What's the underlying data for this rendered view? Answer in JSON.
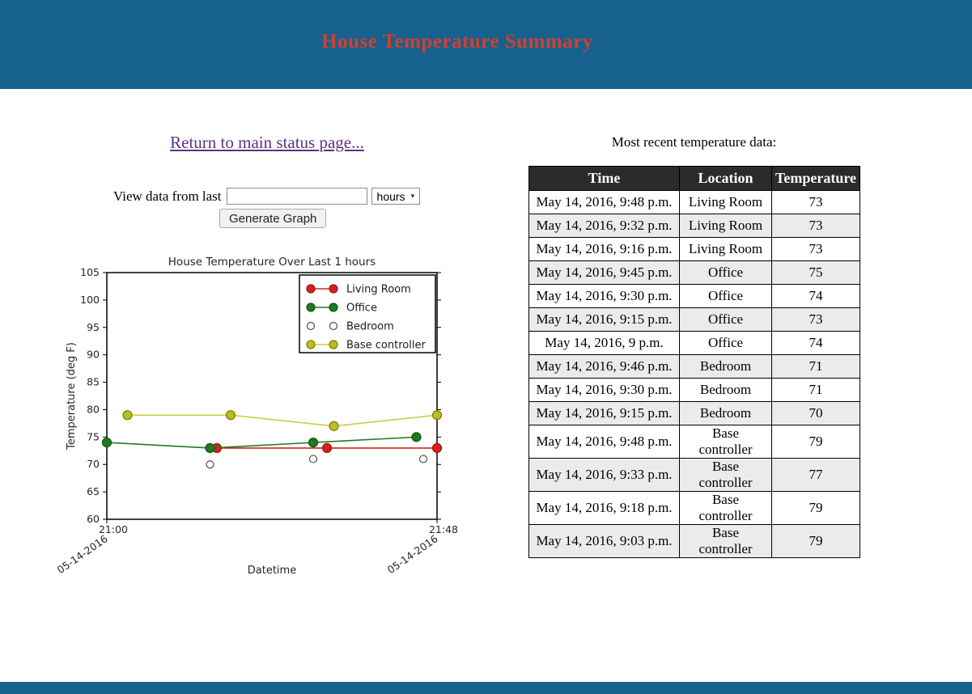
{
  "header": {
    "title": "House Temperature Summary",
    "bg_color": "#16618e",
    "title_color": "#d2402e"
  },
  "nav": {
    "return_link": "Return to main status page..."
  },
  "form": {
    "label": "View data from last",
    "input_value": "",
    "unit_selected": "hours",
    "dropdown_arrow_icon": "▾",
    "submit_label": "Generate Graph"
  },
  "chart_data": {
    "type": "line",
    "title": "House Temperature Over Last 1 hours",
    "xlabel": "Datetime",
    "ylabel": "Temperature (deg F)",
    "ylim": [
      60,
      105
    ],
    "ytick_step": 5,
    "x_minutes_range": [
      0,
      48
    ],
    "xticks": [
      {
        "minute": 0,
        "time": "21:00",
        "date": "05-14-2016"
      },
      {
        "minute": 48,
        "time": "21:48",
        "date": "05-14-2016"
      }
    ],
    "grid": false,
    "legend_position": "upper right",
    "series": [
      {
        "name": "Living Room",
        "line_color": "#d62020",
        "marker_fill": "#d62020",
        "marker_edge": "#a01010",
        "line": true,
        "x": [
          16,
          32,
          48
        ],
        "values": [
          73,
          73,
          73
        ]
      },
      {
        "name": "Office",
        "line_color": "#1e7b1e",
        "marker_fill": "#1e7b1e",
        "marker_edge": "#145214",
        "line": true,
        "x": [
          0,
          15,
          30,
          45
        ],
        "values": [
          74,
          73,
          74,
          75
        ]
      },
      {
        "name": "Bedroom",
        "line_color": "none",
        "marker_fill": "#ffffff",
        "marker_edge": "#4d4d4d",
        "line": false,
        "x": [
          15,
          30,
          46
        ],
        "values": [
          70,
          71,
          71
        ]
      },
      {
        "name": "Base controller",
        "line_color": "#cdcd44",
        "marker_fill": "#bdbd22",
        "marker_edge": "#7c7c00",
        "line": true,
        "x": [
          3,
          18,
          33,
          48
        ],
        "values": [
          79,
          79,
          77,
          79
        ]
      }
    ]
  },
  "table": {
    "caption": "Most recent temperature data:",
    "columns": [
      "Time",
      "Location",
      "Temperature"
    ],
    "rows": [
      [
        "May 14, 2016, 9:48 p.m.",
        "Living Room",
        "73"
      ],
      [
        "May 14, 2016, 9:32 p.m.",
        "Living Room",
        "73"
      ],
      [
        "May 14, 2016, 9:16 p.m.",
        "Living Room",
        "73"
      ],
      [
        "May 14, 2016, 9:45 p.m.",
        "Office",
        "75"
      ],
      [
        "May 14, 2016, 9:30 p.m.",
        "Office",
        "74"
      ],
      [
        "May 14, 2016, 9:15 p.m.",
        "Office",
        "73"
      ],
      [
        "May 14, 2016, 9 p.m.",
        "Office",
        "74"
      ],
      [
        "May 14, 2016, 9:46 p.m.",
        "Bedroom",
        "71"
      ],
      [
        "May 14, 2016, 9:30 p.m.",
        "Bedroom",
        "71"
      ],
      [
        "May 14, 2016, 9:15 p.m.",
        "Bedroom",
        "70"
      ],
      [
        "May 14, 2016, 9:48 p.m.",
        "Base controller",
        "79"
      ],
      [
        "May 14, 2016, 9:33 p.m.",
        "Base controller",
        "77"
      ],
      [
        "May 14, 2016, 9:18 p.m.",
        "Base controller",
        "79"
      ],
      [
        "May 14, 2016, 9:03 p.m.",
        "Base controller",
        "79"
      ]
    ]
  }
}
